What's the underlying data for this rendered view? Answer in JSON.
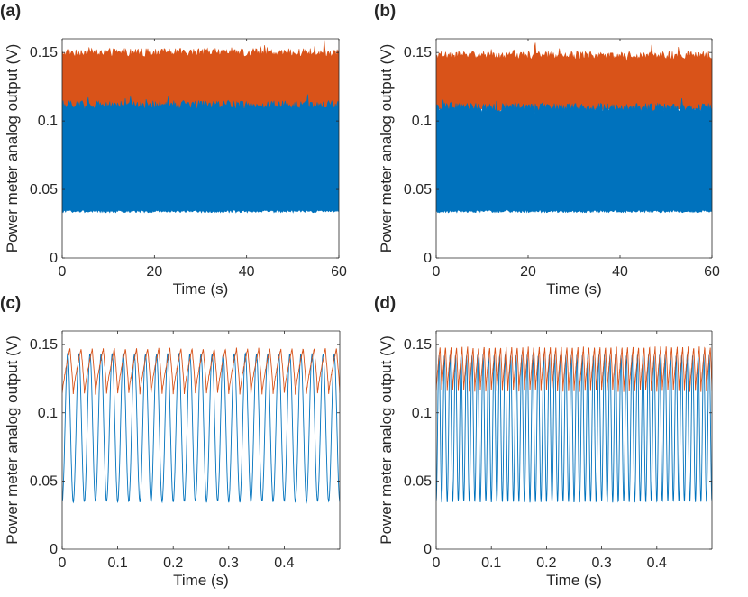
{
  "chart_data": [
    {
      "type": "area",
      "panel_label": "(a)",
      "xlabel": "Time (s)",
      "ylabel": "Power meter analog output (V)",
      "xlim": [
        0,
        60
      ],
      "ylim": [
        0,
        0.16
      ],
      "xticks": [
        0,
        20,
        40,
        60
      ],
      "xtick_labels": [
        "0",
        "20",
        "40",
        "60"
      ],
      "yticks": [
        0,
        0.05,
        0.1,
        0.15
      ],
      "ytick_labels": [
        "0",
        "0.05",
        "0.1",
        "0.15"
      ],
      "series": [
        {
          "name": "orange",
          "color": "#D95319",
          "envelope_min": 0.106,
          "envelope_max": 0.15
        },
        {
          "name": "blue",
          "color": "#0072BD",
          "envelope_min": 0.034,
          "envelope_max": 0.112
        }
      ]
    },
    {
      "type": "area",
      "panel_label": "(b)",
      "xlabel": "Time (s)",
      "ylabel": "Power meter analog output (V)",
      "xlim": [
        0,
        60
      ],
      "ylim": [
        0,
        0.16
      ],
      "xticks": [
        0,
        20,
        40,
        60
      ],
      "xtick_labels": [
        "0",
        "20",
        "40",
        "60"
      ],
      "yticks": [
        0,
        0.05,
        0.1,
        0.15
      ],
      "ytick_labels": [
        "0",
        "0.05",
        "0.1",
        "0.15"
      ],
      "series": [
        {
          "name": "orange",
          "color": "#D95319",
          "envelope_min": 0.108,
          "envelope_max": 0.148
        },
        {
          "name": "blue",
          "color": "#0072BD",
          "envelope_min": 0.034,
          "envelope_max": 0.11
        }
      ]
    },
    {
      "type": "line",
      "panel_label": "(c)",
      "xlabel": "Time (s)",
      "ylabel": "Power meter analog output (V)",
      "xlim": [
        0,
        0.5
      ],
      "ylim": [
        0,
        0.16
      ],
      "xticks": [
        0,
        0.1,
        0.2,
        0.3,
        0.4
      ],
      "xtick_labels": [
        "0",
        "0.1",
        "0.2",
        "0.3",
        "0.4"
      ],
      "yticks": [
        0,
        0.05,
        0.1,
        0.15
      ],
      "ytick_labels": [
        "0",
        "0.05",
        "0.1",
        "0.15"
      ],
      "series": [
        {
          "name": "blue",
          "color": "#0072BD",
          "frequency_hz": 50,
          "min": 0.035,
          "max": 0.143
        },
        {
          "name": "orange",
          "color": "#D95319",
          "frequency_hz": 50,
          "min": 0.114,
          "max": 0.147
        }
      ]
    },
    {
      "type": "line",
      "panel_label": "(d)",
      "xlabel": "Time (s)",
      "ylabel": "Power meter analog output (V)",
      "xlim": [
        0,
        0.5
      ],
      "ylim": [
        0,
        0.16
      ],
      "xticks": [
        0,
        0.1,
        0.2,
        0.3,
        0.4
      ],
      "xtick_labels": [
        "0",
        "0.1",
        "0.2",
        "0.3",
        "0.4"
      ],
      "yticks": [
        0,
        0.05,
        0.1,
        0.15
      ],
      "ytick_labels": [
        "0",
        "0.05",
        "0.1",
        "0.15"
      ],
      "series": [
        {
          "name": "blue",
          "color": "#0072BD",
          "frequency_hz": 100,
          "min": 0.035,
          "max": 0.142
        },
        {
          "name": "orange",
          "color": "#D95319",
          "frequency_hz": 100,
          "min": 0.116,
          "max": 0.148
        }
      ]
    }
  ]
}
